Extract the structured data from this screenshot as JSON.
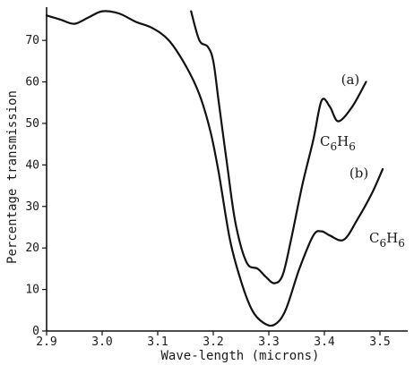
{
  "chart_data": {
    "type": "line",
    "xlabel": "Wave-length (microns)",
    "ylabel": "Percentage transmission",
    "xlim": [
      2.9,
      3.55
    ],
    "ylim": [
      0,
      78
    ],
    "x_ticks": [
      "2.9",
      "3.0",
      "3.1",
      "3.2",
      "3.3",
      "3.4",
      "3.5"
    ],
    "y_ticks": [
      "0",
      "10",
      "20",
      "30",
      "40",
      "50",
      "60",
      "70"
    ],
    "grid": false,
    "series": [
      {
        "label": "(a)",
        "formula": "C6H6",
        "points": [
          [
            3.16,
            77
          ],
          [
            3.175,
            70
          ],
          [
            3.19,
            68.5
          ],
          [
            3.2,
            65
          ],
          [
            3.21,
            55
          ],
          [
            3.225,
            40
          ],
          [
            3.24,
            26
          ],
          [
            3.26,
            16.5
          ],
          [
            3.28,
            15
          ],
          [
            3.295,
            13
          ],
          [
            3.31,
            11.5
          ],
          [
            3.325,
            13.5
          ],
          [
            3.34,
            22
          ],
          [
            3.36,
            35
          ],
          [
            3.38,
            46
          ],
          [
            3.395,
            55.5
          ],
          [
            3.41,
            54
          ],
          [
            3.425,
            50.5
          ],
          [
            3.45,
            54
          ],
          [
            3.475,
            60
          ]
        ]
      },
      {
        "label": "(b)",
        "formula": "C6H6",
        "points": [
          [
            2.9,
            76
          ],
          [
            2.925,
            75
          ],
          [
            2.95,
            74
          ],
          [
            2.975,
            75.5
          ],
          [
            3.0,
            77
          ],
          [
            3.03,
            76.5
          ],
          [
            3.06,
            74.5
          ],
          [
            3.09,
            73
          ],
          [
            3.12,
            70
          ],
          [
            3.15,
            64
          ],
          [
            3.175,
            57
          ],
          [
            3.195,
            48
          ],
          [
            3.21,
            38
          ],
          [
            3.23,
            22
          ],
          [
            3.25,
            12
          ],
          [
            3.27,
            5
          ],
          [
            3.29,
            2
          ],
          [
            3.31,
            1.5
          ],
          [
            3.33,
            5
          ],
          [
            3.355,
            15
          ],
          [
            3.38,
            23
          ],
          [
            3.395,
            24
          ],
          [
            3.41,
            23
          ],
          [
            3.435,
            22
          ],
          [
            3.46,
            27
          ],
          [
            3.485,
            33
          ],
          [
            3.505,
            39
          ]
        ]
      }
    ],
    "annotations": [
      {
        "text": "(a)",
        "x": 3.43,
        "y": 59.5
      },
      {
        "text": "(b)",
        "x": 3.445,
        "y": 37
      }
    ]
  }
}
